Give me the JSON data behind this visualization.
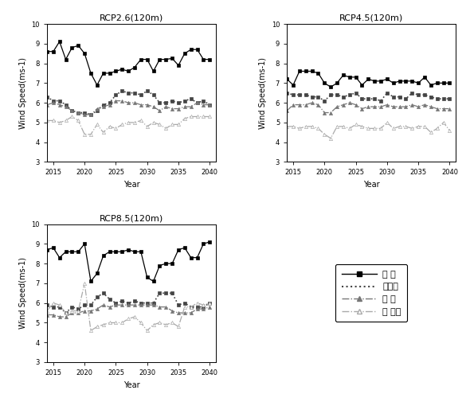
{
  "years": [
    2014,
    2015,
    2016,
    2017,
    2018,
    2019,
    2020,
    2021,
    2022,
    2023,
    2024,
    2025,
    2026,
    2027,
    2028,
    2029,
    2030,
    2031,
    2032,
    2033,
    2034,
    2035,
    2036,
    2037,
    2038,
    2039,
    2040
  ],
  "rcp26": {
    "title": "RCP2.6(120m)",
    "hankyung": [
      8.6,
      8.6,
      9.1,
      8.2,
      8.8,
      8.9,
      8.5,
      7.5,
      6.9,
      7.5,
      7.5,
      7.6,
      7.7,
      7.6,
      7.8,
      8.2,
      8.2,
      7.6,
      8.2,
      8.2,
      8.25,
      7.9,
      8.5,
      8.7,
      8.7,
      8.2,
      8.2
    ],
    "daegwallyeong": [
      6.3,
      6.1,
      6.1,
      5.9,
      5.6,
      5.5,
      5.5,
      5.4,
      5.6,
      5.9,
      6.0,
      6.4,
      6.6,
      6.5,
      6.5,
      6.4,
      6.6,
      6.4,
      6.0,
      6.0,
      6.1,
      6.0,
      6.1,
      6.2,
      6.0,
      6.1,
      5.9
    ],
    "yeongal": [
      5.9,
      6.0,
      5.9,
      5.8,
      5.6,
      5.5,
      5.4,
      5.4,
      5.7,
      5.8,
      5.9,
      6.1,
      6.1,
      6.0,
      6.0,
      5.9,
      5.9,
      5.8,
      5.6,
      5.8,
      5.7,
      5.7,
      5.8,
      5.8,
      6.0,
      5.9,
      5.9
    ],
    "seonamhae": [
      5.1,
      5.1,
      5.0,
      5.1,
      5.3,
      5.1,
      4.4,
      4.4,
      4.9,
      4.5,
      4.8,
      4.7,
      4.9,
      5.0,
      5.0,
      5.1,
      4.8,
      5.0,
      4.9,
      4.7,
      4.9,
      4.9,
      5.2,
      5.3,
      5.3,
      5.3,
      5.3
    ]
  },
  "rcp45": {
    "title": "RCP4.5(120m)",
    "hankyung": [
      7.2,
      6.9,
      7.6,
      7.6,
      7.6,
      7.5,
      7.0,
      6.8,
      7.0,
      7.4,
      7.3,
      7.3,
      6.9,
      7.2,
      7.1,
      7.1,
      7.2,
      7.0,
      7.1,
      7.1,
      7.1,
      7.0,
      7.3,
      6.9,
      7.0,
      7.0,
      7.0
    ],
    "daegwallyeong": [
      6.5,
      6.4,
      6.4,
      6.4,
      6.3,
      6.3,
      6.1,
      6.4,
      6.4,
      6.3,
      6.4,
      6.5,
      6.2,
      6.2,
      6.2,
      6.1,
      6.5,
      6.3,
      6.3,
      6.2,
      6.5,
      6.4,
      6.4,
      6.3,
      6.2,
      6.2,
      6.2
    ],
    "yeongal": [
      5.6,
      5.9,
      5.9,
      5.9,
      6.0,
      5.9,
      5.5,
      5.5,
      5.8,
      5.9,
      6.0,
      5.9,
      5.7,
      5.8,
      5.8,
      5.8,
      5.9,
      5.8,
      5.8,
      5.8,
      5.9,
      5.8,
      5.9,
      5.8,
      5.7,
      5.7,
      5.7
    ],
    "seonamhae": [
      4.8,
      4.8,
      4.7,
      4.8,
      4.8,
      4.7,
      4.4,
      4.2,
      4.8,
      4.8,
      4.7,
      4.9,
      4.8,
      4.7,
      4.7,
      4.7,
      5.0,
      4.7,
      4.8,
      4.8,
      4.7,
      4.8,
      4.8,
      4.5,
      4.7,
      5.0,
      4.6
    ]
  },
  "rcp85": {
    "title": "RCP8.5(120m)",
    "hankyung": [
      8.7,
      8.8,
      8.3,
      8.6,
      8.6,
      8.6,
      9.0,
      7.1,
      7.5,
      8.4,
      8.6,
      8.6,
      8.6,
      8.7,
      8.6,
      8.6,
      7.3,
      7.1,
      7.9,
      8.0,
      8.0,
      8.7,
      8.8,
      8.3,
      8.3,
      9.0,
      9.1
    ],
    "daegwallyeong": [
      5.9,
      5.8,
      5.8,
      5.5,
      5.8,
      5.7,
      5.9,
      5.9,
      6.3,
      6.5,
      6.2,
      6.0,
      6.1,
      6.0,
      6.1,
      6.0,
      6.0,
      6.0,
      6.5,
      6.5,
      6.5,
      5.9,
      6.0,
      5.8,
      5.8,
      5.8,
      6.0
    ],
    "yeongal": [
      5.4,
      5.4,
      5.3,
      5.3,
      5.5,
      5.5,
      5.6,
      5.6,
      5.7,
      5.9,
      5.8,
      5.9,
      5.9,
      5.9,
      5.9,
      5.9,
      5.9,
      5.9,
      5.8,
      5.8,
      5.6,
      5.5,
      5.5,
      5.5,
      5.7,
      5.7,
      5.8
    ],
    "seonamhae": [
      5.6,
      6.0,
      5.9,
      5.5,
      5.6,
      5.6,
      7.0,
      4.6,
      4.8,
      4.9,
      5.0,
      5.0,
      5.0,
      5.2,
      5.3,
      5.0,
      4.6,
      4.9,
      5.0,
      4.9,
      5.0,
      4.8,
      5.8,
      5.8,
      6.0,
      5.9,
      6.0
    ]
  },
  "legend_labels": [
    "한 경",
    "대관령",
    "염 앜",
    "서 남해"
  ],
  "ylabel": "Wind Speed(ms-1)",
  "xlabel": "Year",
  "ylim": [
    3,
    10
  ],
  "yticks": [
    3,
    4,
    5,
    6,
    7,
    8,
    9,
    10
  ],
  "xticks": [
    2015,
    2020,
    2025,
    2030,
    2035,
    2040
  ],
  "bg_color": "#ffffff",
  "line_color_hankyung": "#000000",
  "line_color_daegwallyeong": "#444444",
  "line_color_yeongal": "#777777",
  "line_color_seonamhae": "#aaaaaa"
}
